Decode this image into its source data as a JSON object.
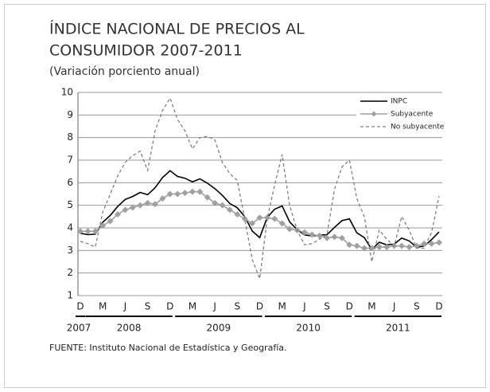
{
  "chart_data": {
    "type": "line",
    "title": [
      "ÍNDICE NACIONAL DE PRECIOS AL",
      "CONSUMIDOR 2007-2011"
    ],
    "subtitle": "(Variación porciento anual)",
    "source": "FUENTE: Instituto Nacional de Estadística y Geografía.",
    "categories": [
      "D",
      null,
      null,
      "M",
      null,
      null,
      "J",
      null,
      null,
      "S",
      null,
      null,
      "D",
      null,
      null,
      "M",
      null,
      null,
      "J",
      null,
      null,
      "S",
      null,
      null,
      "D",
      null,
      null,
      "M",
      null,
      null,
      "J",
      null,
      null,
      "S",
      null,
      null,
      "D",
      null,
      null,
      "M",
      null,
      null,
      "J",
      null,
      null,
      "S",
      null,
      null,
      "D"
    ],
    "years": [
      "2007",
      "2008",
      "2009",
      "2010",
      "2011"
    ],
    "ylim": [
      1,
      10
    ],
    "yticks": [
      1,
      2,
      3,
      4,
      5,
      6,
      7,
      8,
      9,
      10
    ],
    "grid": true,
    "legend": "top-right",
    "series": [
      {
        "name": "INPC",
        "color": "#000000",
        "values": [
          3.76,
          3.7,
          3.72,
          4.25,
          4.55,
          4.95,
          5.26,
          5.39,
          5.57,
          5.47,
          5.78,
          6.23,
          6.53,
          6.28,
          6.2,
          6.04,
          6.17,
          5.98,
          5.74,
          5.44,
          5.08,
          4.89,
          4.5,
          3.86,
          3.57,
          4.46,
          4.83,
          4.97,
          4.27,
          3.92,
          3.69,
          3.64,
          3.68,
          3.7,
          4.02,
          4.32,
          4.4,
          3.78,
          3.57,
          3.04,
          3.36,
          3.25,
          3.28,
          3.55,
          3.42,
          3.14,
          3.2,
          3.48,
          3.82
        ]
      },
      {
        "name": "Subyacente",
        "color": "#a0a0a0",
        "marker": "diamond",
        "values": [
          3.85,
          3.85,
          3.85,
          4.1,
          4.3,
          4.6,
          4.8,
          4.9,
          5.0,
          5.1,
          5.05,
          5.3,
          5.5,
          5.5,
          5.55,
          5.6,
          5.6,
          5.35,
          5.1,
          5.0,
          4.8,
          4.6,
          4.4,
          4.2,
          4.45,
          4.45,
          4.4,
          4.2,
          3.95,
          3.9,
          3.8,
          3.7,
          3.65,
          3.55,
          3.6,
          3.55,
          3.25,
          3.2,
          3.1,
          3.1,
          3.15,
          3.15,
          3.2,
          3.2,
          3.15,
          3.2,
          3.3,
          3.3,
          3.35
        ]
      },
      {
        "name": "No subyacente",
        "color": "#808080",
        "dashed": true,
        "values": [
          3.4,
          3.3,
          3.15,
          4.7,
          5.5,
          6.3,
          6.9,
          7.2,
          7.4,
          6.55,
          8.3,
          9.2,
          9.75,
          8.8,
          8.3,
          7.5,
          8.0,
          8.05,
          7.9,
          6.9,
          6.4,
          6.1,
          4.4,
          2.6,
          1.75,
          4.4,
          5.9,
          7.25,
          5.0,
          3.9,
          3.25,
          3.3,
          3.5,
          3.7,
          5.7,
          6.7,
          7.0,
          5.3,
          4.5,
          2.5,
          3.9,
          3.5,
          3.2,
          4.5,
          3.9,
          3.1,
          3.1,
          3.8,
          5.4
        ]
      }
    ]
  }
}
